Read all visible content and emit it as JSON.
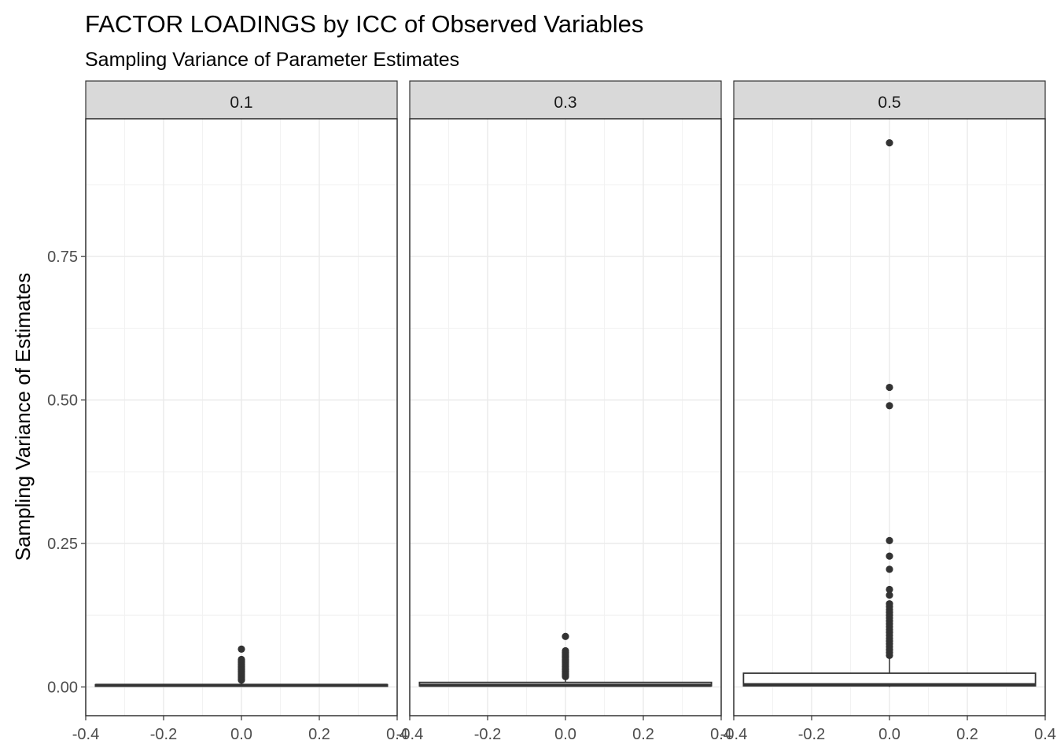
{
  "chart_data": {
    "type": "boxplot",
    "title": "FACTOR LOADINGS by ICC of Observed Variables",
    "subtitle": "Sampling Variance of Parameter Estimates",
    "xlabel": "",
    "ylabel": "Sampling Variance of Estimates",
    "xlim": [
      -0.4,
      0.4
    ],
    "ylim": [
      -0.05,
      0.99
    ],
    "x_ticks": [
      "-0.4",
      "-0.2",
      "0.0",
      "0.2",
      "0.4"
    ],
    "y_ticks": [
      "0.00",
      "0.25",
      "0.50",
      "0.75"
    ],
    "grid": true,
    "legend": "none",
    "facets": [
      {
        "label": "0.1",
        "box": {
          "x": 0.0,
          "width": 0.75,
          "min": 0.0,
          "q1": 0.002,
          "median": 0.003,
          "q3": 0.004,
          "max": 0.009
        },
        "outliers": [
          0.012,
          0.014,
          0.016,
          0.018,
          0.02,
          0.022,
          0.024,
          0.026,
          0.028,
          0.03,
          0.032,
          0.034,
          0.036,
          0.038,
          0.04,
          0.042,
          0.044,
          0.046,
          0.048,
          0.066
        ]
      },
      {
        "label": "0.3",
        "box": {
          "x": 0.0,
          "width": 0.75,
          "min": 0.0,
          "q1": 0.002,
          "median": 0.003,
          "q3": 0.008,
          "max": 0.016
        },
        "outliers": [
          0.018,
          0.021,
          0.024,
          0.027,
          0.03,
          0.033,
          0.036,
          0.039,
          0.042,
          0.045,
          0.048,
          0.051,
          0.054,
          0.057,
          0.06,
          0.063,
          0.088
        ]
      },
      {
        "label": "0.5",
        "box": {
          "x": 0.0,
          "width": 0.75,
          "min": 0.0,
          "q1": 0.002,
          "median": 0.004,
          "q3": 0.024,
          "max": 0.055
        },
        "outliers": [
          0.055,
          0.06,
          0.065,
          0.07,
          0.075,
          0.08,
          0.085,
          0.09,
          0.095,
          0.1,
          0.105,
          0.11,
          0.115,
          0.12,
          0.125,
          0.13,
          0.135,
          0.14,
          0.145,
          0.16,
          0.17,
          0.205,
          0.228,
          0.255,
          0.49,
          0.522,
          0.948
        ]
      }
    ]
  }
}
